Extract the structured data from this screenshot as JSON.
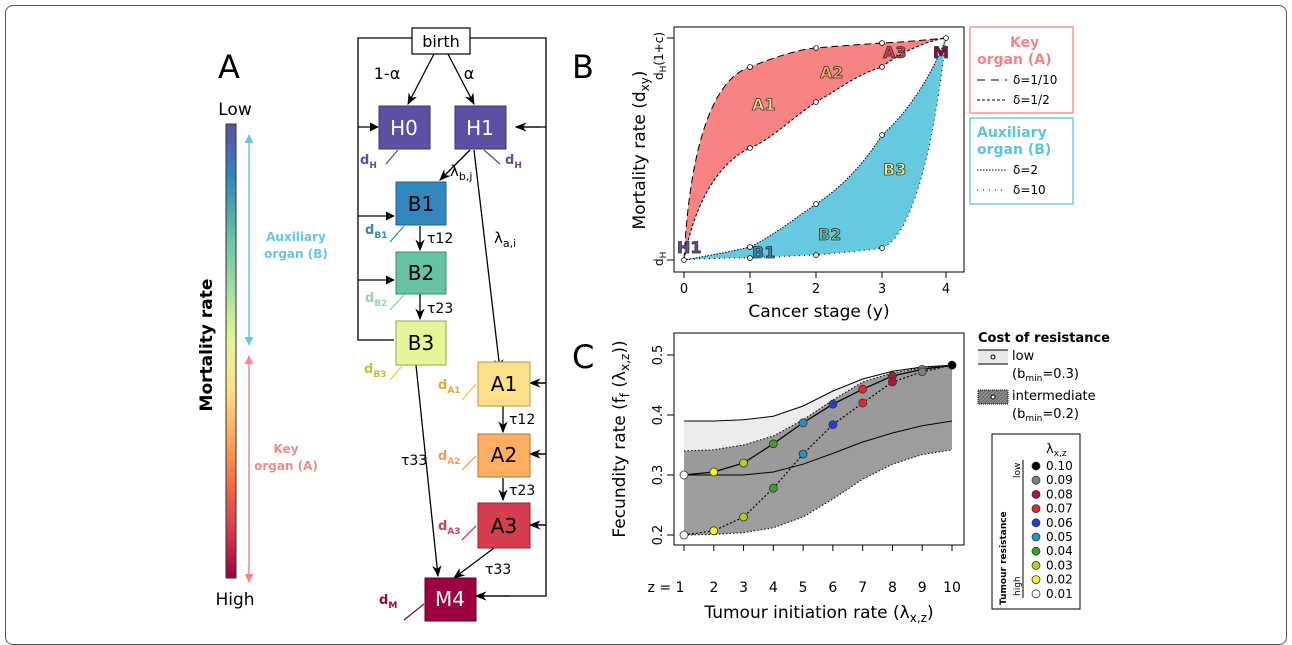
{
  "panel_a": {
    "panel_letter": "A",
    "colorbar": {
      "top_label": "Low",
      "bottom_label": "High",
      "axis_title": "Mortality rate",
      "aux_label_1": "Auxiliary",
      "aux_label_2": "organ (B)",
      "key_label_1": "Key",
      "key_label_2": "organ (A)",
      "colors": [
        "#5E4FA2",
        "#3288BD",
        "#66C2A5",
        "#ABDDA4",
        "#E6F598",
        "#FEE08B",
        "#FDAE61",
        "#F46D43",
        "#D53E4F",
        "#9E0142"
      ]
    },
    "flow": {
      "birth": "birth",
      "one_minus_alpha": "1-α",
      "alpha": "α",
      "nodes": [
        {
          "id": "H0",
          "label": "H0",
          "color": "#5E4FA2"
        },
        {
          "id": "H1",
          "label": "H1",
          "color": "#5E4FA2"
        },
        {
          "id": "B1",
          "label": "B1",
          "color": "#3288BD"
        },
        {
          "id": "B2",
          "label": "B2",
          "color": "#66C2A5"
        },
        {
          "id": "B3",
          "label": "B3",
          "color": "#E6F598"
        },
        {
          "id": "A1",
          "label": "A1",
          "color": "#FEE08B"
        },
        {
          "id": "A2",
          "label": "A2",
          "color": "#FDAE61"
        },
        {
          "id": "A3",
          "label": "A3",
          "color": "#D53E4F"
        },
        {
          "id": "M4",
          "label": "M4",
          "color": "#9E0142"
        }
      ],
      "death_labels": [
        {
          "id": "dH0",
          "base": "d",
          "sub": "H",
          "color": "#5E4FA2"
        },
        {
          "id": "dH1",
          "base": "d",
          "sub": "H",
          "color": "#5E4FA2"
        },
        {
          "id": "dB1",
          "base": "d",
          "sub": "B1",
          "color": "#3288BD"
        },
        {
          "id": "dB2",
          "base": "d",
          "sub": "B2",
          "color": "#99D5A5"
        },
        {
          "id": "dB3",
          "base": "d",
          "sub": "B3",
          "color": "#C8DC5A"
        },
        {
          "id": "dA1",
          "base": "d",
          "sub": "A1",
          "color": "#F2C24B"
        },
        {
          "id": "dA2",
          "base": "d",
          "sub": "A2",
          "color": "#F69A5A"
        },
        {
          "id": "dA3",
          "base": "d",
          "sub": "A3",
          "color": "#D53E4F"
        },
        {
          "id": "dM",
          "base": "d",
          "sub": "M",
          "color": "#9E0142"
        }
      ],
      "rates": {
        "lambda_b": "λ",
        "lambda_b_sub": "b,j",
        "lambda_a": "λ",
        "lambda_a_sub": "a,i",
        "tau12_b": "τ12",
        "tau23_b": "τ23",
        "tau12_a": "τ12",
        "tau23_a": "τ23",
        "tau33_b": "τ33",
        "tau33_a": "τ33"
      }
    }
  },
  "panel_b": {
    "panel_letter": "B",
    "ylabel": "Mortality rate (d",
    "ylabel_sub": "xy",
    "ylabel_end": ")",
    "xlabel": "Cancer stage (y)",
    "ytick_top": "d",
    "ytick_top_sub": "H",
    "ytick_top_end": "(1+c)",
    "ytick_bottom": "d",
    "ytick_bottom_sub": "H",
    "xticks": [
      "0",
      "1",
      "2",
      "3",
      "4"
    ],
    "node_labels": [
      "H1",
      "B1",
      "B2",
      "B3",
      "A1",
      "A2",
      "A3",
      "M"
    ],
    "legend_key": {
      "title_1": "Key",
      "title_2": "organ (A)",
      "entries": [
        "δ=1/10",
        "δ=1/2"
      ],
      "color": "#F88383"
    },
    "legend_aux": {
      "title_1": "Auxiliary",
      "title_2": "organ (B)",
      "entries": [
        "δ=2",
        "δ=10"
      ],
      "color": "#5BC4DE"
    }
  },
  "panel_c": {
    "panel_letter": "C",
    "ylabel": "Fecundity rate (f",
    "ylabel_sub": "f",
    "ylabel_mid": " (λ",
    "ylabel_sub2": "x,z",
    "ylabel_end": "))",
    "xlabel": "Tumour initiation rate (λ",
    "xlabel_sub": "x,z",
    "xlabel_end": ")",
    "xtick_first": "z = 1",
    "xticks": [
      "2",
      "3",
      "4",
      "5",
      "6",
      "7",
      "8",
      "9",
      "10"
    ],
    "yticks": [
      "0.2",
      "0.3",
      "0.4",
      "0.5"
    ],
    "legend": {
      "title": "Cost of resistance",
      "low": "low",
      "low_param": "(b",
      "low_param_sub": "min",
      "low_param_end": "=0.3)",
      "intermediate": "intermediate",
      "int_param": "(b",
      "int_param_sub": "min",
      "int_param_end": "=0.2)"
    },
    "resistance_box": {
      "title": "λ",
      "title_sub": "x,z",
      "side_title": "Tumour resistance",
      "low": "low",
      "high": "high",
      "entries": [
        {
          "value": "0.10",
          "color": "#000000"
        },
        {
          "value": "0.09",
          "color": "#808080"
        },
        {
          "value": "0.08",
          "color": "#B3123A"
        },
        {
          "value": "0.07",
          "color": "#E8262A"
        },
        {
          "value": "0.06",
          "color": "#1E3FD4"
        },
        {
          "value": "0.05",
          "color": "#2A8FC8"
        },
        {
          "value": "0.04",
          "color": "#3E9E2A"
        },
        {
          "value": "0.03",
          "color": "#B5CC22"
        },
        {
          "value": "0.02",
          "color": "#F4F42A"
        },
        {
          "value": "0.01",
          "color": "#FFFFFF"
        }
      ]
    }
  },
  "chart_data": [
    {
      "type": "area",
      "panel": "B",
      "xlabel": "Cancer stage (y)",
      "ylabel": "Mortality rate (dxy)",
      "x": [
        0,
        1,
        2,
        3,
        4
      ],
      "series": [
        {
          "name": "δ=1/10",
          "values": [
            0,
            0.86,
            0.98,
            1.0,
            1.0
          ]
        },
        {
          "name": "δ=1/2",
          "values": [
            0,
            0.5,
            0.71,
            0.87,
            1.0
          ]
        },
        {
          "name": "δ=2",
          "values": [
            0,
            0.06,
            0.25,
            0.56,
            1.0
          ]
        },
        {
          "name": "δ=10",
          "values": [
            0,
            0.0,
            0.0,
            0.06,
            1.0
          ]
        }
      ]
    },
    {
      "type": "line",
      "panel": "C",
      "xlabel": "Tumour initiation rate (λx,z)",
      "ylabel": "Fecundity rate (ff(λx,z))",
      "x": [
        1,
        2,
        3,
        4,
        5,
        6,
        7,
        8,
        9,
        10
      ],
      "ylim": [
        0.2,
        0.5
      ],
      "series": [
        {
          "name": "low",
          "values": [
            0.3,
            0.305,
            0.32,
            0.352,
            0.387,
            0.418,
            0.443,
            0.465,
            0.476,
            0.483
          ]
        },
        {
          "name": "intermediate",
          "values": [
            0.2,
            0.207,
            0.23,
            0.278,
            0.335,
            0.384,
            0.42,
            0.455,
            0.472,
            0.483
          ]
        }
      ],
      "bands": [
        {
          "name": "low",
          "upper": [
            0.39,
            0.39,
            0.392,
            0.398,
            0.415,
            0.44,
            0.46,
            0.473,
            0.48,
            0.483
          ],
          "lower": [
            0.3,
            0.3,
            0.3,
            0.305,
            0.318,
            0.336,
            0.355,
            0.37,
            0.382,
            0.39
          ]
        },
        {
          "name": "intermediate",
          "upper": [
            0.34,
            0.342,
            0.35,
            0.365,
            0.392,
            0.425,
            0.455,
            0.47,
            0.479,
            0.483
          ],
          "lower": [
            0.2,
            0.201,
            0.204,
            0.212,
            0.23,
            0.26,
            0.293,
            0.318,
            0.334,
            0.342
          ]
        }
      ]
    }
  ]
}
